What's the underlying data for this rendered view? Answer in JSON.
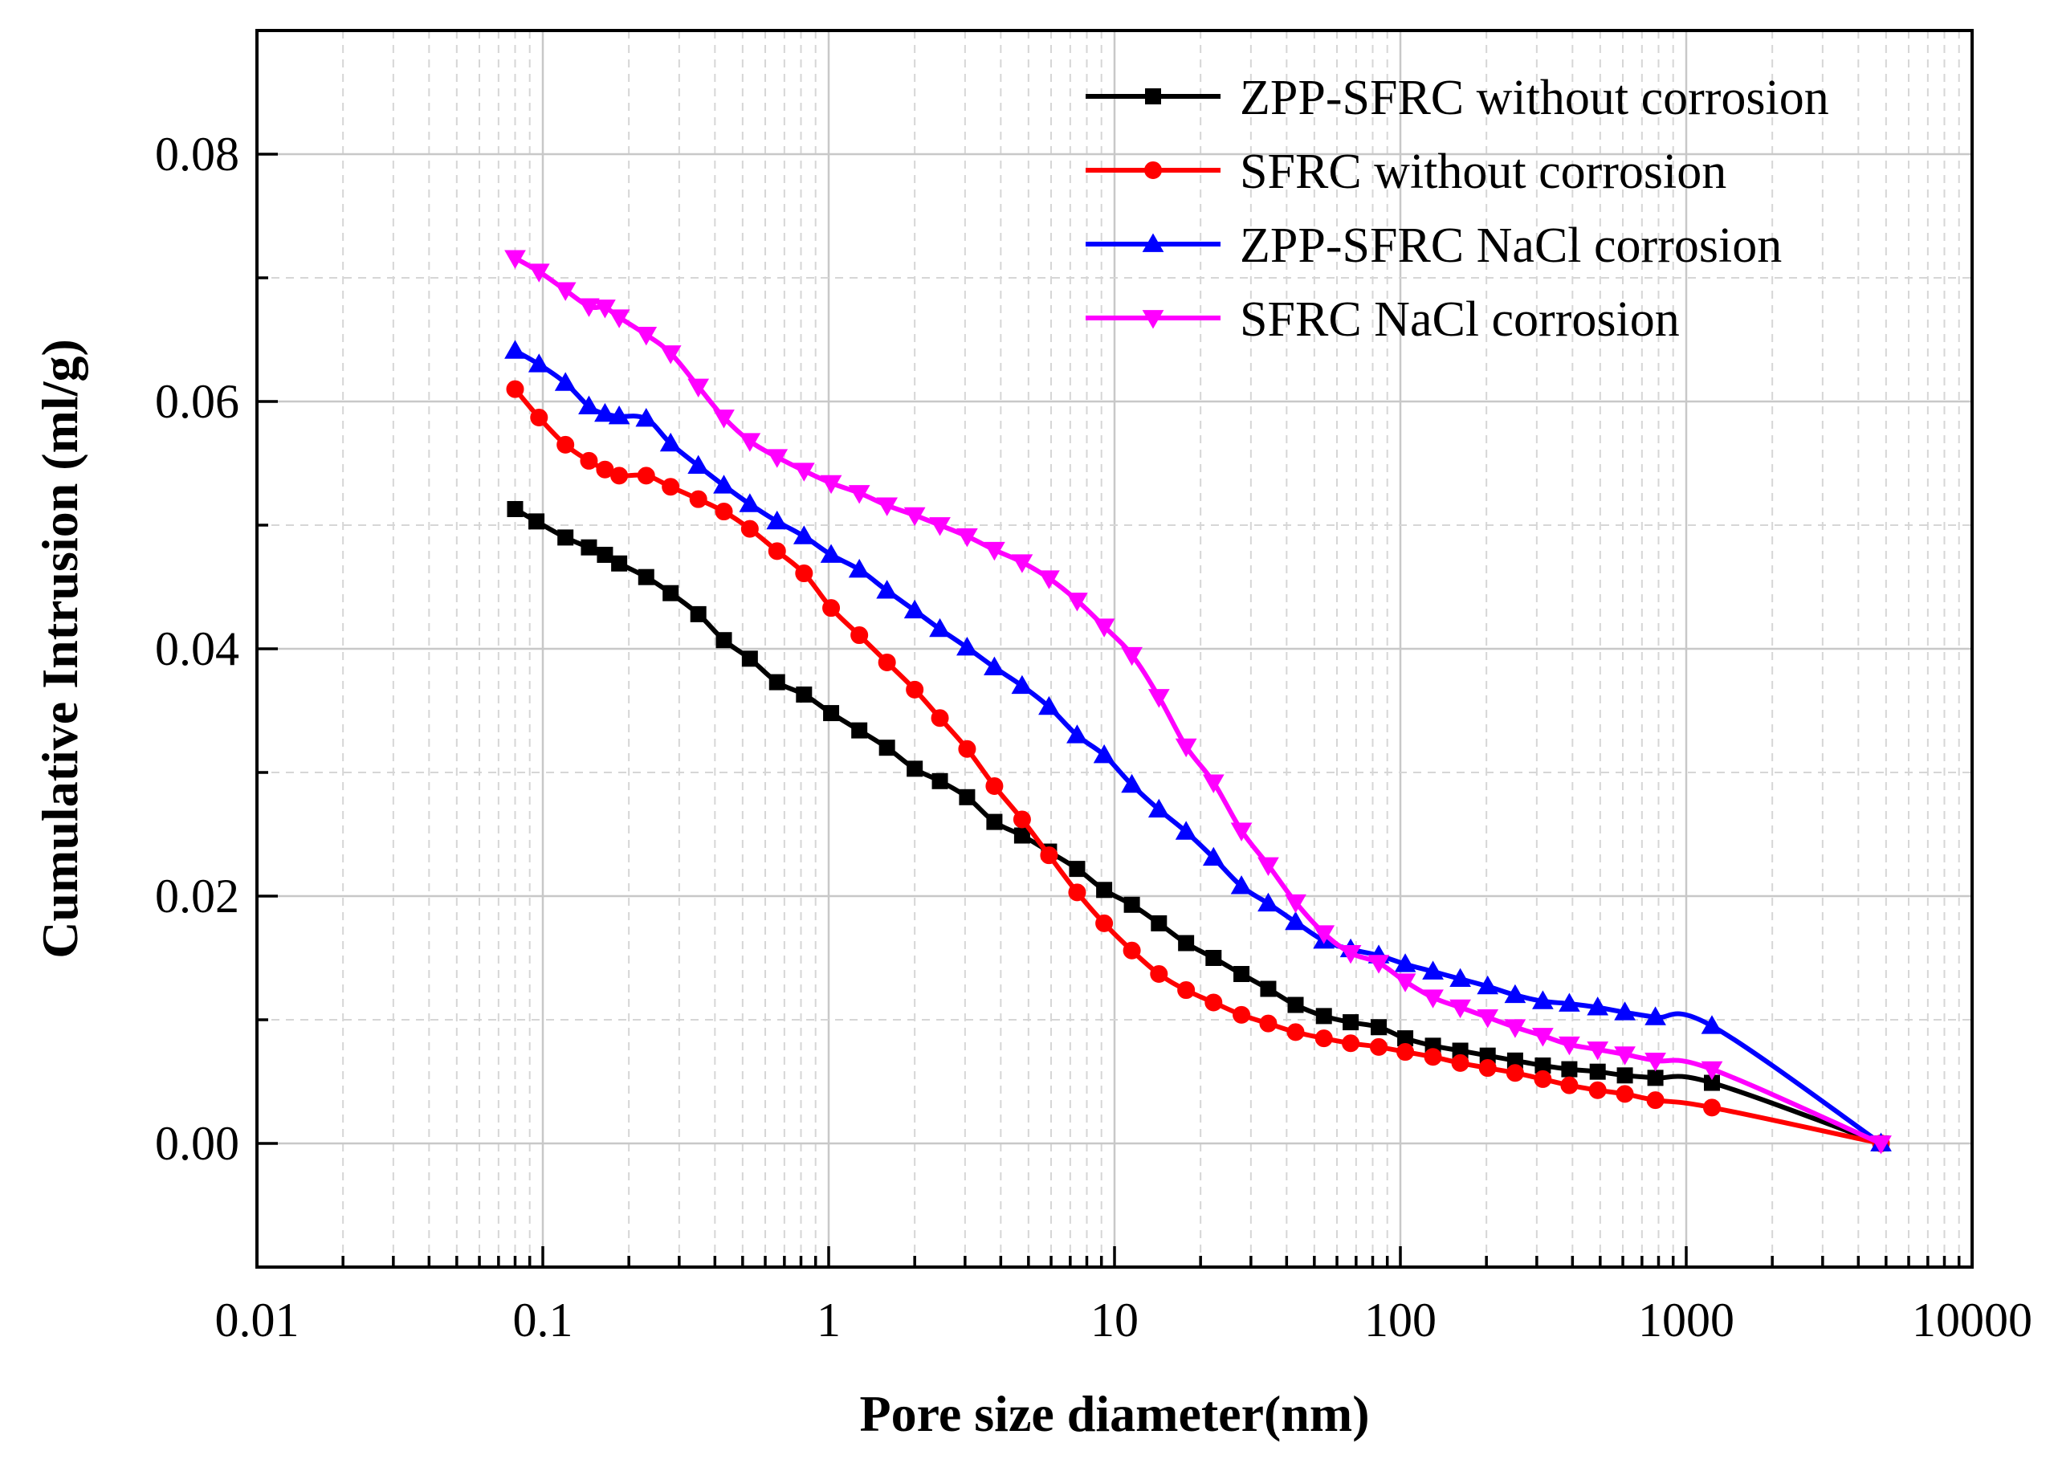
{
  "chart_data": {
    "type": "line",
    "xscale": "log",
    "xlabel": "Pore size diameter(nm)",
    "ylabel": "Cumulative Intrusion (ml/g)",
    "xlim": [
      0.01,
      10000
    ],
    "ylim": [
      -0.01,
      0.09
    ],
    "grid": true,
    "legend_position": "top-right",
    "x_ticks": [
      {
        "value": 0.01,
        "label": "0.01"
      },
      {
        "value": 0.1,
        "label": "0.1"
      },
      {
        "value": 1,
        "label": "1"
      },
      {
        "value": 10,
        "label": "10"
      },
      {
        "value": 100,
        "label": "100"
      },
      {
        "value": 1000,
        "label": "1000"
      },
      {
        "value": 10000,
        "label": "10000"
      }
    ],
    "y_ticks": [
      {
        "value": 0.0,
        "label": "0.00"
      },
      {
        "value": 0.02,
        "label": "0.02"
      },
      {
        "value": 0.04,
        "label": "0.04"
      },
      {
        "value": 0.06,
        "label": "0.06"
      },
      {
        "value": 0.08,
        "label": "0.08"
      }
    ],
    "series": [
      {
        "name": "ZPP-SFRC without corrosion",
        "color": "#000000",
        "marker": "square",
        "x": [
          0.08,
          0.095,
          0.12,
          0.145,
          0.165,
          0.185,
          0.23,
          0.28,
          0.35,
          0.43,
          0.53,
          0.66,
          0.82,
          1.02,
          1.28,
          1.6,
          2.0,
          2.45,
          3.05,
          3.8,
          4.75,
          5.9,
          7.4,
          9.2,
          11.5,
          14.3,
          17.8,
          22.2,
          27.8,
          34.5,
          43.0,
          54.0,
          67.0,
          84.0,
          104,
          130,
          162,
          202,
          252,
          315,
          390,
          490,
          610,
          780,
          1230,
          4800
        ],
        "y": [
          0.0513,
          0.0503,
          0.049,
          0.0482,
          0.0476,
          0.0469,
          0.0458,
          0.0445,
          0.0428,
          0.0407,
          0.0392,
          0.0373,
          0.0363,
          0.0348,
          0.0334,
          0.032,
          0.0303,
          0.0293,
          0.028,
          0.026,
          0.0249,
          0.0236,
          0.0222,
          0.0205,
          0.0193,
          0.0178,
          0.0162,
          0.015,
          0.0137,
          0.0125,
          0.0112,
          0.0103,
          0.0098,
          0.0094,
          0.0085,
          0.0079,
          0.0075,
          0.0071,
          0.0067,
          0.0063,
          0.006,
          0.0058,
          0.0055,
          0.0053,
          0.0049,
          0.0
        ]
      },
      {
        "name": "SFRC without corrosion",
        "color": "#ff0000",
        "marker": "circle",
        "x": [
          0.08,
          0.097,
          0.12,
          0.145,
          0.165,
          0.185,
          0.23,
          0.28,
          0.35,
          0.43,
          0.53,
          0.66,
          0.82,
          1.02,
          1.28,
          1.6,
          2.0,
          2.45,
          3.05,
          3.8,
          4.75,
          5.9,
          7.4,
          9.2,
          11.5,
          14.3,
          17.8,
          22.2,
          27.8,
          34.5,
          43.0,
          54.0,
          67.0,
          84.0,
          104,
          130,
          162,
          202,
          252,
          315,
          390,
          490,
          610,
          780,
          1230,
          4800
        ],
        "y": [
          0.061,
          0.0587,
          0.0565,
          0.0552,
          0.0545,
          0.054,
          0.054,
          0.0531,
          0.0521,
          0.0511,
          0.0497,
          0.0479,
          0.0461,
          0.0433,
          0.0411,
          0.0389,
          0.0367,
          0.0344,
          0.0319,
          0.0289,
          0.0262,
          0.0233,
          0.0203,
          0.0178,
          0.0156,
          0.0137,
          0.0124,
          0.0114,
          0.0104,
          0.0097,
          0.009,
          0.0085,
          0.0081,
          0.0078,
          0.0074,
          0.007,
          0.0065,
          0.0061,
          0.0057,
          0.0052,
          0.0047,
          0.0043,
          0.004,
          0.0035,
          0.0029,
          0.0
        ]
      },
      {
        "name": "ZPP-SFRC NaCl corrosion",
        "color": "#0000ff",
        "marker": "triangle-up",
        "x": [
          0.08,
          0.097,
          0.12,
          0.145,
          0.165,
          0.185,
          0.23,
          0.28,
          0.35,
          0.43,
          0.53,
          0.66,
          0.82,
          1.02,
          1.28,
          1.6,
          2.0,
          2.45,
          3.05,
          3.8,
          4.75,
          5.9,
          7.4,
          9.2,
          11.5,
          14.3,
          17.8,
          22.2,
          27.8,
          34.5,
          43.0,
          54.0,
          67.0,
          84.0,
          104,
          130,
          162,
          202,
          252,
          315,
          390,
          490,
          610,
          780,
          1230,
          4800
        ],
        "y": [
          0.0641,
          0.063,
          0.0615,
          0.0596,
          0.059,
          0.0588,
          0.0586,
          0.0566,
          0.0548,
          0.0532,
          0.0517,
          0.0503,
          0.0491,
          0.0476,
          0.0464,
          0.0447,
          0.0431,
          0.0416,
          0.0401,
          0.0385,
          0.037,
          0.0353,
          0.033,
          0.0314,
          0.029,
          0.027,
          0.0252,
          0.0231,
          0.0208,
          0.0194,
          0.0179,
          0.0164,
          0.0157,
          0.0152,
          0.0145,
          0.0139,
          0.0133,
          0.0127,
          0.012,
          0.0115,
          0.0113,
          0.011,
          0.0106,
          0.0102,
          0.0095,
          0.0
        ]
      },
      {
        "name": "SFRC NaCl corrosion",
        "color": "#ff00ff",
        "marker": "triangle-down",
        "x": [
          0.08,
          0.097,
          0.12,
          0.145,
          0.165,
          0.185,
          0.23,
          0.28,
          0.35,
          0.43,
          0.53,
          0.66,
          0.82,
          1.02,
          1.28,
          1.6,
          2.0,
          2.45,
          3.05,
          3.8,
          4.75,
          5.9,
          7.4,
          9.2,
          11.5,
          14.3,
          17.8,
          22.2,
          27.8,
          34.5,
          43.0,
          54.0,
          67.0,
          84.0,
          104,
          130,
          162,
          202,
          252,
          315,
          390,
          490,
          610,
          780,
          1230,
          4800
        ],
        "y": [
          0.0716,
          0.0705,
          0.069,
          0.0677,
          0.0676,
          0.0668,
          0.0654,
          0.0639,
          0.0612,
          0.0587,
          0.0568,
          0.0555,
          0.0544,
          0.0534,
          0.0526,
          0.0516,
          0.0508,
          0.05,
          0.0491,
          0.048,
          0.047,
          0.0457,
          0.0439,
          0.0418,
          0.0395,
          0.0361,
          0.0321,
          0.0292,
          0.0253,
          0.0225,
          0.0195,
          0.017,
          0.0154,
          0.0146,
          0.0131,
          0.0118,
          0.011,
          0.0102,
          0.0094,
          0.0087,
          0.008,
          0.0076,
          0.0072,
          0.0067,
          0.006,
          0.0
        ]
      }
    ]
  }
}
